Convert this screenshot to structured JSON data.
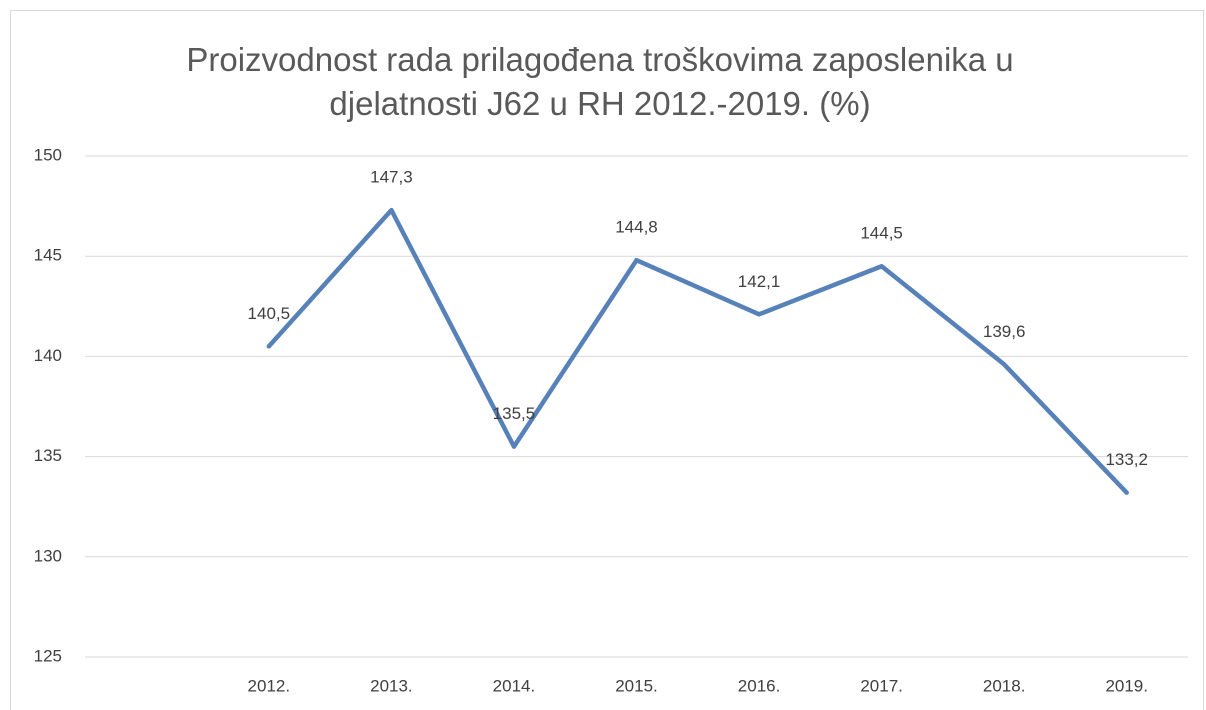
{
  "chart_data": {
    "type": "line",
    "title": "Proizvodnost rada prilagođena troškovima zaposlenika u djelatnosti J62 u RH 2012.-2019. (%)",
    "categories": [
      null,
      "2012.",
      "2013.",
      "2014.",
      "2015.",
      "2016.",
      "2017.",
      "2018.",
      "2019."
    ],
    "values": [
      null,
      140.5,
      147.3,
      135.5,
      144.8,
      142.1,
      144.5,
      139.6,
      133.2
    ],
    "value_labels": [
      null,
      "140,5",
      "147,3",
      "135,5",
      "144,8",
      "142,1",
      "144,5",
      "139,6",
      "133,2"
    ],
    "color": "#5681b9",
    "ylim": [
      125,
      150
    ],
    "yticks": [
      125,
      130,
      135,
      140,
      145,
      150
    ],
    "grid": true
  }
}
